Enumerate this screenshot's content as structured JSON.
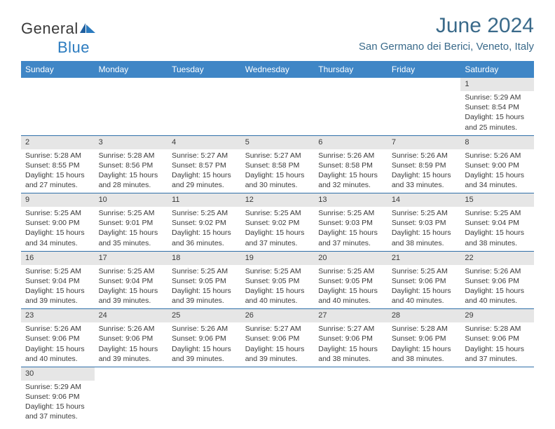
{
  "logo": {
    "word1": "General",
    "word2": "Blue"
  },
  "title": "June 2024",
  "location": "San Germano dei Berici, Veneto, Italy",
  "colors": {
    "header_bg": "#3f86c6",
    "header_text": "#ffffff",
    "daynum_bg": "#e6e6e6",
    "row_border": "#2f6fa8",
    "title_color": "#3a6a8a",
    "body_text": "#3a3a3a",
    "logo_blue": "#2b7bbf"
  },
  "day_headers": [
    "Sunday",
    "Monday",
    "Tuesday",
    "Wednesday",
    "Thursday",
    "Friday",
    "Saturday"
  ],
  "weeks": [
    {
      "nums": [
        "",
        "",
        "",
        "",
        "",
        "",
        "1"
      ],
      "cells": [
        null,
        null,
        null,
        null,
        null,
        null,
        {
          "sunrise": "5:29 AM",
          "sunset": "8:54 PM",
          "daylight": "15 hours and 25 minutes."
        }
      ]
    },
    {
      "nums": [
        "2",
        "3",
        "4",
        "5",
        "6",
        "7",
        "8"
      ],
      "cells": [
        {
          "sunrise": "5:28 AM",
          "sunset": "8:55 PM",
          "daylight": "15 hours and 27 minutes."
        },
        {
          "sunrise": "5:28 AM",
          "sunset": "8:56 PM",
          "daylight": "15 hours and 28 minutes."
        },
        {
          "sunrise": "5:27 AM",
          "sunset": "8:57 PM",
          "daylight": "15 hours and 29 minutes."
        },
        {
          "sunrise": "5:27 AM",
          "sunset": "8:58 PM",
          "daylight": "15 hours and 30 minutes."
        },
        {
          "sunrise": "5:26 AM",
          "sunset": "8:58 PM",
          "daylight": "15 hours and 32 minutes."
        },
        {
          "sunrise": "5:26 AM",
          "sunset": "8:59 PM",
          "daylight": "15 hours and 33 minutes."
        },
        {
          "sunrise": "5:26 AM",
          "sunset": "9:00 PM",
          "daylight": "15 hours and 34 minutes."
        }
      ]
    },
    {
      "nums": [
        "9",
        "10",
        "11",
        "12",
        "13",
        "14",
        "15"
      ],
      "cells": [
        {
          "sunrise": "5:25 AM",
          "sunset": "9:00 PM",
          "daylight": "15 hours and 34 minutes."
        },
        {
          "sunrise": "5:25 AM",
          "sunset": "9:01 PM",
          "daylight": "15 hours and 35 minutes."
        },
        {
          "sunrise": "5:25 AM",
          "sunset": "9:02 PM",
          "daylight": "15 hours and 36 minutes."
        },
        {
          "sunrise": "5:25 AM",
          "sunset": "9:02 PM",
          "daylight": "15 hours and 37 minutes."
        },
        {
          "sunrise": "5:25 AM",
          "sunset": "9:03 PM",
          "daylight": "15 hours and 37 minutes."
        },
        {
          "sunrise": "5:25 AM",
          "sunset": "9:03 PM",
          "daylight": "15 hours and 38 minutes."
        },
        {
          "sunrise": "5:25 AM",
          "sunset": "9:04 PM",
          "daylight": "15 hours and 38 minutes."
        }
      ]
    },
    {
      "nums": [
        "16",
        "17",
        "18",
        "19",
        "20",
        "21",
        "22"
      ],
      "cells": [
        {
          "sunrise": "5:25 AM",
          "sunset": "9:04 PM",
          "daylight": "15 hours and 39 minutes."
        },
        {
          "sunrise": "5:25 AM",
          "sunset": "9:04 PM",
          "daylight": "15 hours and 39 minutes."
        },
        {
          "sunrise": "5:25 AM",
          "sunset": "9:05 PM",
          "daylight": "15 hours and 39 minutes."
        },
        {
          "sunrise": "5:25 AM",
          "sunset": "9:05 PM",
          "daylight": "15 hours and 40 minutes."
        },
        {
          "sunrise": "5:25 AM",
          "sunset": "9:05 PM",
          "daylight": "15 hours and 40 minutes."
        },
        {
          "sunrise": "5:25 AM",
          "sunset": "9:06 PM",
          "daylight": "15 hours and 40 minutes."
        },
        {
          "sunrise": "5:26 AM",
          "sunset": "9:06 PM",
          "daylight": "15 hours and 40 minutes."
        }
      ]
    },
    {
      "nums": [
        "23",
        "24",
        "25",
        "26",
        "27",
        "28",
        "29"
      ],
      "cells": [
        {
          "sunrise": "5:26 AM",
          "sunset": "9:06 PM",
          "daylight": "15 hours and 40 minutes."
        },
        {
          "sunrise": "5:26 AM",
          "sunset": "9:06 PM",
          "daylight": "15 hours and 39 minutes."
        },
        {
          "sunrise": "5:26 AM",
          "sunset": "9:06 PM",
          "daylight": "15 hours and 39 minutes."
        },
        {
          "sunrise": "5:27 AM",
          "sunset": "9:06 PM",
          "daylight": "15 hours and 39 minutes."
        },
        {
          "sunrise": "5:27 AM",
          "sunset": "9:06 PM",
          "daylight": "15 hours and 38 minutes."
        },
        {
          "sunrise": "5:28 AM",
          "sunset": "9:06 PM",
          "daylight": "15 hours and 38 minutes."
        },
        {
          "sunrise": "5:28 AM",
          "sunset": "9:06 PM",
          "daylight": "15 hours and 37 minutes."
        }
      ]
    },
    {
      "nums": [
        "30",
        "",
        "",
        "",
        "",
        "",
        ""
      ],
      "cells": [
        {
          "sunrise": "5:29 AM",
          "sunset": "9:06 PM",
          "daylight": "15 hours and 37 minutes."
        },
        null,
        null,
        null,
        null,
        null,
        null
      ]
    }
  ],
  "labels": {
    "sunrise": "Sunrise: ",
    "sunset": "Sunset: ",
    "daylight": "Daylight: "
  }
}
